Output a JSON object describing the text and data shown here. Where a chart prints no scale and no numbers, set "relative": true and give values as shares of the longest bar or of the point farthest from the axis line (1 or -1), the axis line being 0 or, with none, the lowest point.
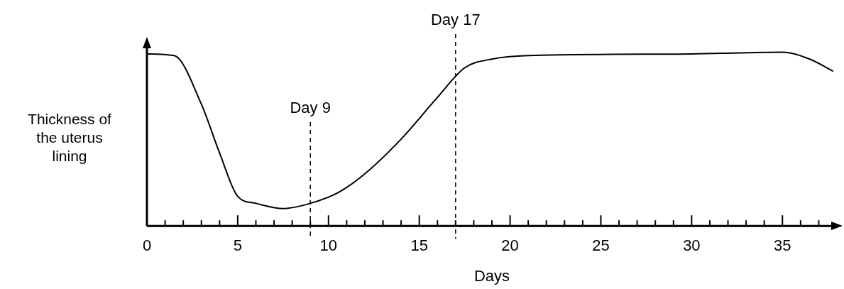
{
  "chart_data": {
    "type": "line",
    "relative": true,
    "xlabel": "Days",
    "ylabel": "Thickness of the uterus lining",
    "color": "#000000",
    "marker": "none",
    "line_style": "solid",
    "grid": false,
    "legend": false,
    "tick_labels": "x",
    "xlim": [
      0,
      38
    ],
    "xticks": [
      0,
      {
        "value": 1,
        "label": null
      },
      {
        "value": 2,
        "label": null
      },
      {
        "value": 3,
        "label": null
      },
      {
        "value": 4,
        "label": null
      },
      5,
      {
        "value": 6,
        "label": null
      },
      {
        "value": 7,
        "label": null
      },
      {
        "value": 8,
        "label": null
      },
      {
        "value": 9,
        "label": null
      },
      10,
      {
        "value": 11,
        "label": null
      },
      {
        "value": 12,
        "label": null
      },
      {
        "value": 13,
        "label": null
      },
      {
        "value": 14,
        "label": null
      },
      15,
      {
        "value": 16,
        "label": null
      },
      {
        "value": 17,
        "label": null
      },
      {
        "value": 18,
        "label": null
      },
      {
        "value": 19,
        "label": null
      },
      20,
      {
        "value": 21,
        "label": null
      },
      {
        "value": 22,
        "label": null
      },
      {
        "value": 23,
        "label": null
      },
      {
        "value": 24,
        "label": null
      },
      25,
      {
        "value": 26,
        "label": null
      },
      {
        "value": 27,
        "label": null
      },
      {
        "value": 28,
        "label": null
      },
      {
        "value": 29,
        "label": null
      },
      30,
      {
        "value": 31,
        "label": null
      },
      {
        "value": 32,
        "label": null
      },
      {
        "value": 33,
        "label": null
      },
      {
        "value": 34,
        "label": null
      },
      35,
      {
        "value": 36,
        "label": null
      },
      {
        "value": 37,
        "label": null
      }
    ],
    "x": [
      0,
      1.5,
      3,
      4,
      5,
      6,
      7.5,
      9,
      10.5,
      12,
      14,
      16,
      17.5,
      19,
      21,
      30,
      35,
      36.5,
      37.8
    ],
    "values": [
      0.99,
      0.98,
      0.7,
      0.42,
      0.17,
      0.13,
      0.1,
      0.13,
      0.19,
      0.3,
      0.5,
      0.74,
      0.91,
      0.96,
      0.98,
      0.99,
      1,
      0.96,
      0.89
    ],
    "ref_lines": [
      {
        "axis": "x",
        "value": 9,
        "label": "Day 9",
        "line_style": "dashed"
      },
      {
        "axis": "x",
        "value": 17,
        "label": "Day 17",
        "line_style": "dashed"
      }
    ]
  }
}
